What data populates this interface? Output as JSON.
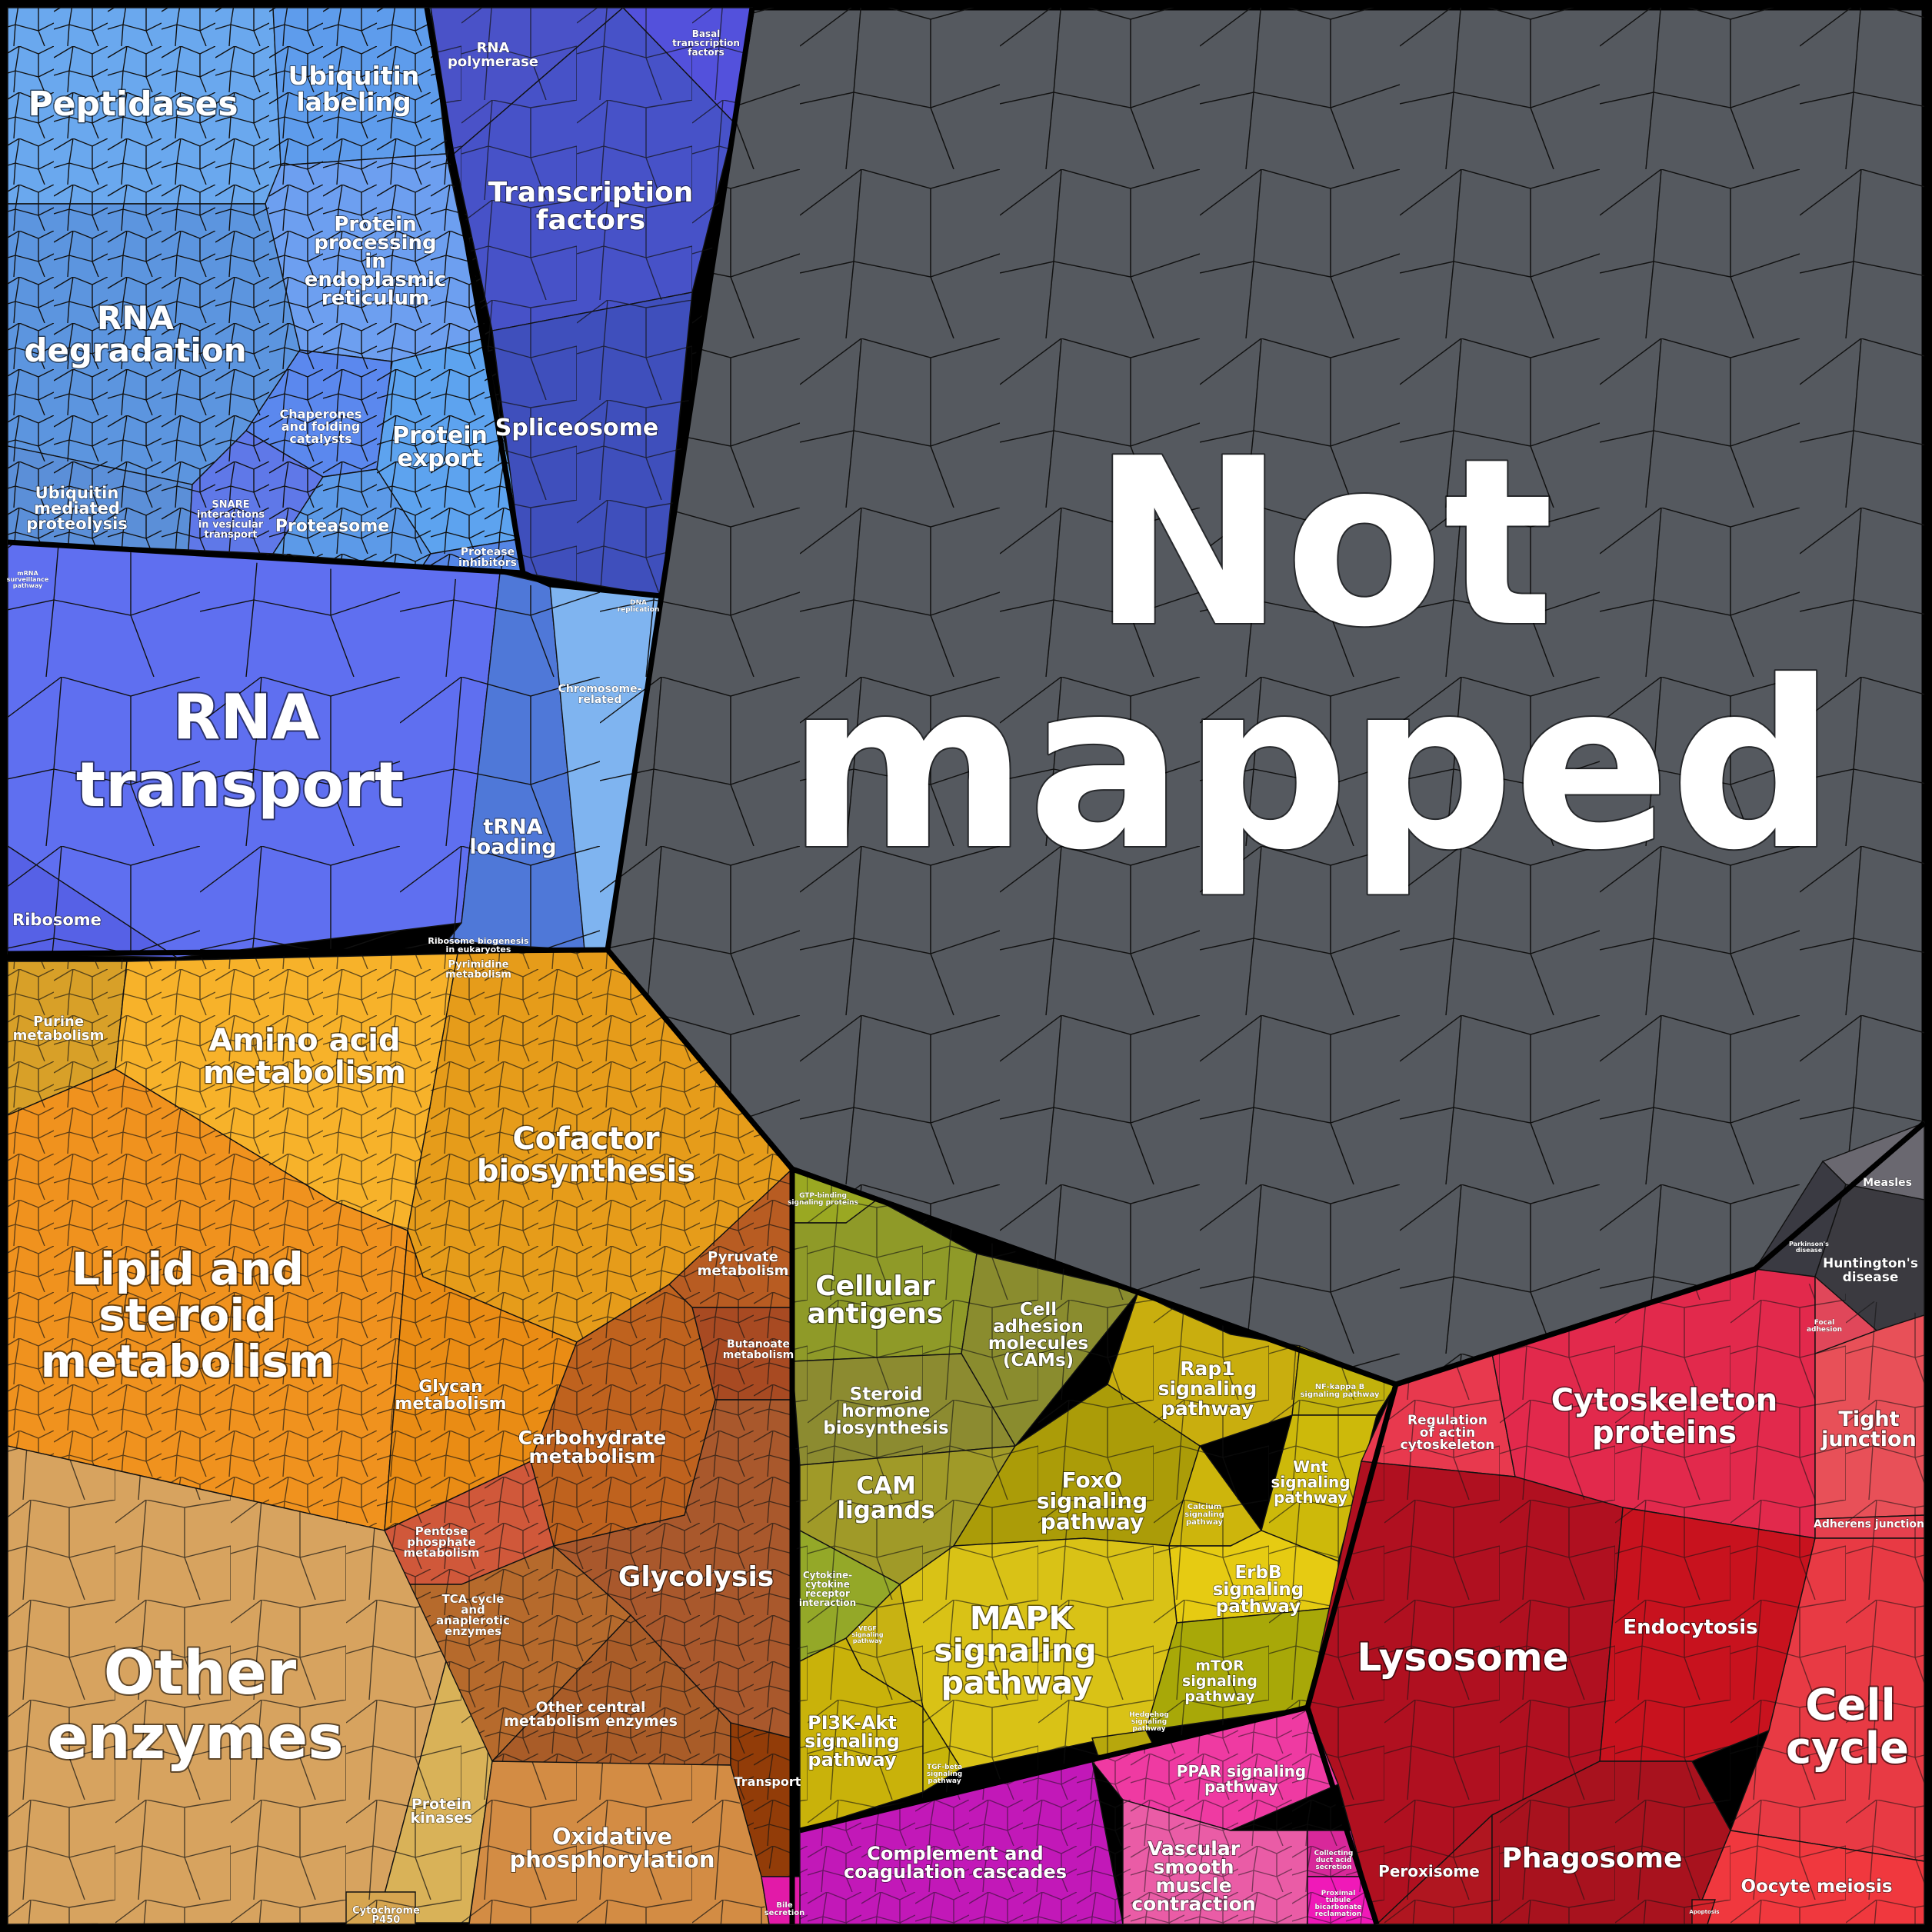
{
  "colors": {
    "not_mapped": "#565a5f",
    "genetic_blue_light": "#6aa8ee",
    "genetic_blue": "#5b8fe0",
    "transcription_indigo": "#4a55cc",
    "rna_transport_blue": "#5f6ff0",
    "metabolism_orange": "#f5a623",
    "lipid_orange": "#f0921e",
    "other_enzymes_tan": "#d7a35f",
    "carbohydrate_brown": "#b8611e",
    "cellular_olive": "#8f9a28",
    "signaling_yellow": "#d9c216",
    "complement_magenta": "#c218b8",
    "vascular_pink": "#ea4fa8",
    "cytoskeleton_red": "#e2294c",
    "lysosome_crimson": "#b01020",
    "cell_cycle_red": "#e83a44",
    "disease_dark": "#3b3a40"
  },
  "labels": {
    "not_mapped": [
      "Not",
      "mapped"
    ],
    "peptidases": "Peptidases",
    "ubiquitin_labeling": [
      "Ubiquitin",
      "labeling"
    ],
    "rna_polymerase": [
      "RNA",
      "polymerase"
    ],
    "basal_tf": [
      "Basal",
      "transcription",
      "factors"
    ],
    "transcription_factors": [
      "Transcription",
      "factors"
    ],
    "protein_processing_er": [
      "Protein",
      "processing",
      "in",
      "endoplasmic",
      "reticulum"
    ],
    "rna_degradation": [
      "RNA",
      "degradation"
    ],
    "chaperones": [
      "Chaperones",
      "and folding",
      "catalysts"
    ],
    "protein_export": [
      "Protein",
      "export"
    ],
    "spliceosome": "Spliceosome",
    "ubiquitin_mediated": [
      "Ubiquitin",
      "mediated",
      "proteolysis"
    ],
    "snare": [
      "SNARE",
      "interactions",
      "in vesicular",
      "transport"
    ],
    "proteasome": "Proteasome",
    "protease_inhibitors": [
      "Protease",
      "inhibitors"
    ],
    "rna_transport": [
      "RNA",
      "transport"
    ],
    "chromosome_related": [
      "Chromosome-",
      "related"
    ],
    "trna_loading": [
      "tRNA",
      "loading"
    ],
    "ribosome": "Ribosome",
    "ribosome_biogenesis": [
      "Ribosome biogenesis",
      "in eukaryotes"
    ],
    "mrna_surveillance": [
      "mRNA",
      "surveillance",
      "pathway"
    ],
    "dna_replication": [
      "DNA",
      "replication"
    ],
    "purine_metabolism": [
      "Purine",
      "metabolism"
    ],
    "pyrimidine_metabolism": [
      "Pyrimidine",
      "metabolism"
    ],
    "amino_acid_metabolism": [
      "Amino acid",
      "metabolism"
    ],
    "cofactor_biosynthesis": [
      "Cofactor",
      "biosynthesis"
    ],
    "lipid_steroid": [
      "Lipid and",
      "steroid",
      "metabolism"
    ],
    "pyruvate_metabolism": [
      "Pyruvate",
      "metabolism"
    ],
    "butanoate_metabolism": [
      "Butanoate",
      "metabolism"
    ],
    "glycan_metabolism": [
      "Glycan",
      "metabolism"
    ],
    "carbohydrate_metabolism": [
      "Carbohydrate",
      "metabolism"
    ],
    "pentose_phosphate": [
      "Pentose",
      "phosphate",
      "metabolism"
    ],
    "glycolysis": "Glycolysis",
    "tca_cycle": [
      "TCA cycle",
      "and",
      "anaplerotic",
      "enzymes"
    ],
    "other_central": [
      "Other central",
      "metabolism enzymes"
    ],
    "other_enzymes": [
      "Other",
      "enzymes"
    ],
    "protein_kinases": [
      "Protein",
      "kinases"
    ],
    "oxidative_phosphorylation": [
      "Oxidative",
      "phosphorylation"
    ],
    "transport": "Transport",
    "cytochrome_p450": [
      "Cytochrome",
      "P450"
    ],
    "gtp_binding": [
      "GTP-binding",
      "signaling proteins"
    ],
    "cellular_antigens": [
      "Cellular",
      "antigens"
    ],
    "cams": [
      "Cell",
      "adhesion",
      "molecules",
      "(CAMs)"
    ],
    "steroid_hormone": [
      "Steroid",
      "hormone",
      "biosynthesis"
    ],
    "cam_ligands": [
      "CAM",
      "ligands"
    ],
    "cytokine_receptor": [
      "Cytokine-",
      "cytokine",
      "receptor",
      "interaction"
    ],
    "rap1": [
      "Rap1",
      "signaling",
      "pathway"
    ],
    "nfkb": [
      "NF-kappa B",
      "signaling pathway"
    ],
    "foxo": [
      "FoxO",
      "signaling",
      "pathway"
    ],
    "wnt": [
      "Wnt",
      "signaling",
      "pathway"
    ],
    "calcium": [
      "Calcium",
      "signaling",
      "pathway"
    ],
    "erbb": [
      "ErbB",
      "signaling",
      "pathway"
    ],
    "mapk": [
      "MAPK",
      "signaling",
      "pathway"
    ],
    "vegf": [
      "VEGF",
      "signaling",
      "pathway"
    ],
    "mtor": [
      "mTOR",
      "signaling",
      "pathway"
    ],
    "pi3k_akt": [
      "PI3K-Akt",
      "signaling",
      "pathway"
    ],
    "tgf_beta": [
      "TGF-beta",
      "signaling",
      "pathway"
    ],
    "hedgehog": [
      "Hedgehog",
      "signaling",
      "pathway"
    ],
    "complement": [
      "Complement and",
      "coagulation cascades"
    ],
    "ppar": [
      "PPAR signaling",
      "pathway"
    ],
    "vascular_smooth": [
      "Vascular",
      "smooth",
      "muscle",
      "contraction"
    ],
    "collecting_duct": [
      "Collecting",
      "duct acid",
      "secretion"
    ],
    "proximal_tubule": [
      "Proximal",
      "tubule",
      "bicarbonate",
      "reclamation"
    ],
    "bile_secretion": [
      "Bile",
      "secretion"
    ],
    "measles": "Measles",
    "huntingtons": [
      "Huntington's",
      "disease"
    ],
    "parkinsons": [
      "Parkinson's",
      "disease"
    ],
    "regulation_actin": [
      "Regulation",
      "of actin",
      "cytoskeleton"
    ],
    "cytoskeleton_proteins": [
      "Cytoskeleton",
      "proteins"
    ],
    "focal_adhesion": [
      "Focal",
      "adhesion"
    ],
    "tight_junction": [
      "Tight",
      "junction"
    ],
    "adherens_junction": "Adherens junction",
    "lysosome": "Lysosome",
    "endocytosis": "Endocytosis",
    "cell_cycle": [
      "Cell",
      "cycle"
    ],
    "peroxisome": "Peroxisome",
    "phagosome": "Phagosome",
    "oocyte_meiosis": "Oocyte meiosis",
    "apoptosis": "Apoptosis"
  }
}
